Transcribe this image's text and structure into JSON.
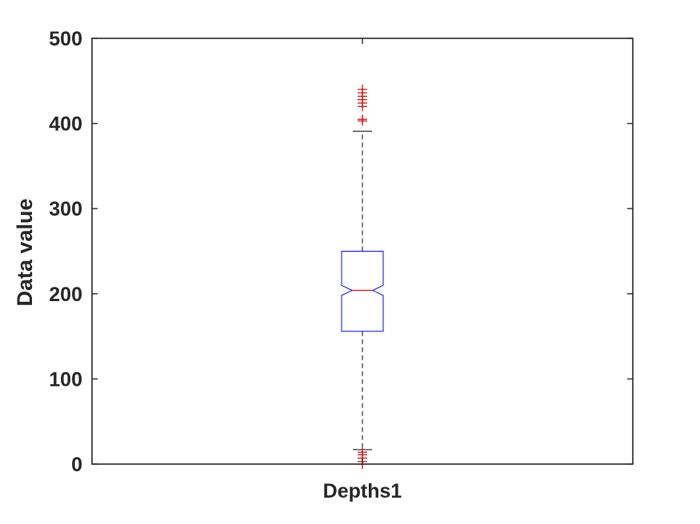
{
  "chart_data": {
    "type": "boxplot",
    "categories": [
      "Depths1"
    ],
    "ylabel": "Data value",
    "xlabel": "",
    "ylim": [
      0,
      500
    ],
    "yticks": [
      0,
      100,
      200,
      300,
      400,
      500
    ],
    "grid": false,
    "notched": true,
    "boxes": [
      {
        "category": "Depths1",
        "q1": 156,
        "median": 204,
        "q3": 250,
        "notch_low": 198,
        "notch_high": 210,
        "whisker_low": 17,
        "whisker_high": 391,
        "outliers": [
          0,
          3,
          7,
          11,
          14,
          403,
          405,
          420,
          424,
          428,
          432,
          436,
          440
        ]
      }
    ],
    "colors": {
      "box": "#0000ff",
      "median": "#ff0000",
      "whisker": "#000000",
      "outlier": "#cc0000",
      "axis": "#262626"
    }
  }
}
